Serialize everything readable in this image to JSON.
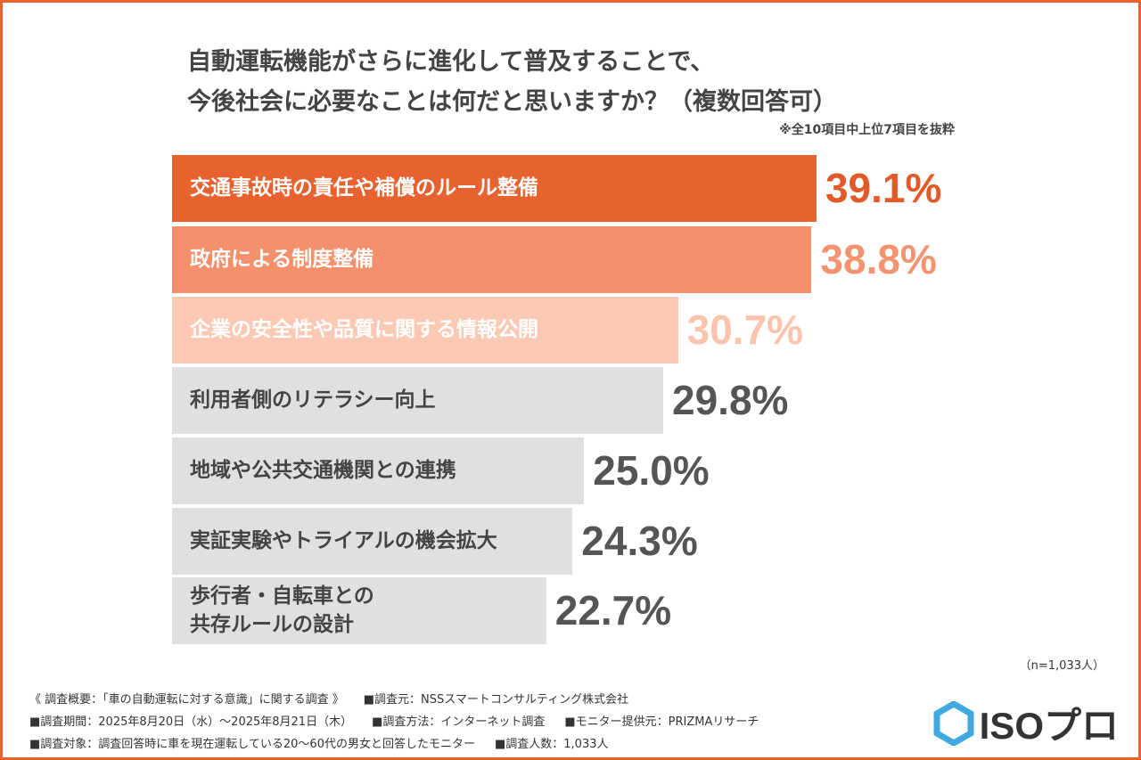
{
  "chart_data": {
    "type": "bar",
    "title": [
      "自動運転機能がさらに進化して普及することで、",
      "今後社会に必要なことは何だと思いますか？（複数回答可）"
    ],
    "note": "※全10項目中上位7項目を抜粋",
    "categories": [
      "交通事故時の責任や補償のルール整備",
      "政府による制度整備",
      "企業の安全性や品質に関する情報公開",
      "利用者側のリテラシー向上",
      "地域や公共交通機関との連携",
      "実証実験やトライアルの機会拡大",
      "歩行者・自転車との\n共存ルールの設計"
    ],
    "values": [
      39.1,
      38.8,
      30.7,
      29.8,
      25.0,
      24.3,
      22.7
    ],
    "value_labels": [
      "39.1%",
      "38.8%",
      "30.7%",
      "29.8%",
      "25.0%",
      "24.3%",
      "22.7%"
    ],
    "colors": [
      "#e8622f",
      "#f5906c",
      "#fcc9b5",
      "#e0e0e0",
      "#e0e0e0",
      "#e0e0e0",
      "#e0e0e0"
    ],
    "label_colors": [
      "#e25a28",
      "#f5926f",
      "#fcc4ae",
      "#555555",
      "#555555",
      "#555555",
      "#555555"
    ],
    "sample_size": "（n=1,033人）"
  },
  "footer": {
    "lines": [
      [
        "《 調査概要：「車の自動運転に対する意識」に関する調査 》",
        "■調査元：NSSスマートコンサルティング株式会社"
      ],
      [
        "■調査期間：2025年8月20日（水）～2025年8月21日（木）",
        "■調査方法：インターネット調査",
        "■モニター提供元：PRIZMAリサーチ"
      ],
      [
        "■調査対象：調査回答時に車を現在運転している20～60代の男女と回答したモニター",
        "■調査人数：1,033人"
      ]
    ]
  },
  "logo": "ISOプロ"
}
